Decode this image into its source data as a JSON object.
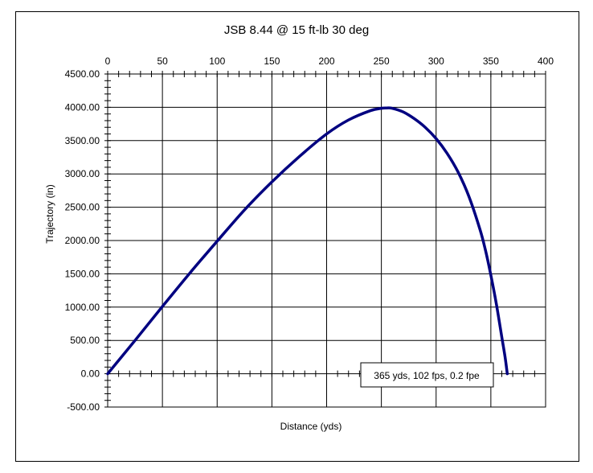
{
  "chart_data": {
    "type": "line",
    "title": "JSB 8.44 @ 15 ft-lb 30 deg",
    "xlabel": "Distance (yds)",
    "ylabel": "Trajectory (in)",
    "xlim": [
      0,
      400
    ],
    "ylim": [
      -500,
      4500
    ],
    "x_ticks": [
      "0",
      "50",
      "100",
      "150",
      "200",
      "250",
      "300",
      "350",
      "400"
    ],
    "y_ticks": [
      "-500.00",
      "0.00",
      "500.00",
      "1000.00",
      "1500.00",
      "2000.00",
      "2500.00",
      "3000.00",
      "3500.00",
      "4000.00",
      "4500.00"
    ],
    "x_axis_position": "top",
    "grid": true,
    "series": [
      {
        "color": "#000080",
        "x": [
          0,
          25,
          50,
          75,
          100,
          125,
          150,
          175,
          200,
          220,
          240,
          250,
          255,
          260,
          270,
          280,
          290,
          300,
          310,
          320,
          330,
          340,
          345,
          350,
          355,
          360,
          363,
          365
        ],
        "y": [
          0,
          500,
          1010,
          1510,
          1990,
          2460,
          2880,
          3260,
          3600,
          3810,
          3950,
          3985,
          3990,
          3985,
          3930,
          3830,
          3700,
          3530,
          3310,
          3030,
          2660,
          2170,
          1860,
          1480,
          1050,
          550,
          250,
          0
        ]
      }
    ],
    "annotation": "365 yds, 102 fps, 0.2 fpe"
  }
}
